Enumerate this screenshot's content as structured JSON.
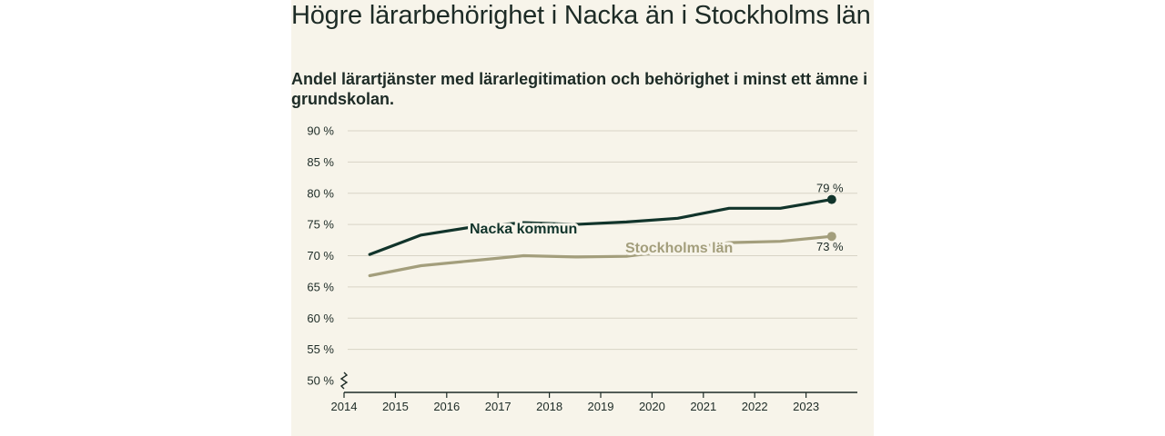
{
  "chart_data": {
    "type": "line",
    "title": "Högre lärarbehörighet i Nacka än i Stockholms län",
    "subtitle": "Andel lärartjänster med lärarlegitimation och behörighet i minst ett ämne i grundskolan.",
    "x": [
      2014,
      2015,
      2016,
      2017,
      2018,
      2019,
      2020,
      2021,
      2022,
      2023
    ],
    "x_tick_labels": [
      "2014",
      "2015",
      "2016",
      "2017",
      "2018",
      "2019",
      "2020",
      "2021",
      "2022",
      "2023"
    ],
    "y_ticks": [
      50,
      55,
      60,
      65,
      70,
      75,
      80,
      85,
      90
    ],
    "y_tick_labels": [
      "50 %",
      "55 %",
      "60 %",
      "65 %",
      "70 %",
      "75 %",
      "80 %",
      "85 %",
      "90 %"
    ],
    "ylim": [
      50,
      90
    ],
    "axis_break": true,
    "grid": true,
    "series": [
      {
        "name": "Nacka kommun",
        "color": "#11342b",
        "values": [
          70.2,
          73.3,
          74.6,
          75.3,
          75.0,
          75.4,
          76.0,
          77.6,
          77.6,
          79.0
        ],
        "end_label": "79 %"
      },
      {
        "name": "Stockholms län",
        "color": "#a39e7c",
        "values": [
          66.8,
          68.4,
          69.2,
          70.0,
          69.8,
          69.9,
          70.9,
          72.1,
          72.3,
          73.1
        ],
        "end_label": "73 %"
      }
    ]
  }
}
